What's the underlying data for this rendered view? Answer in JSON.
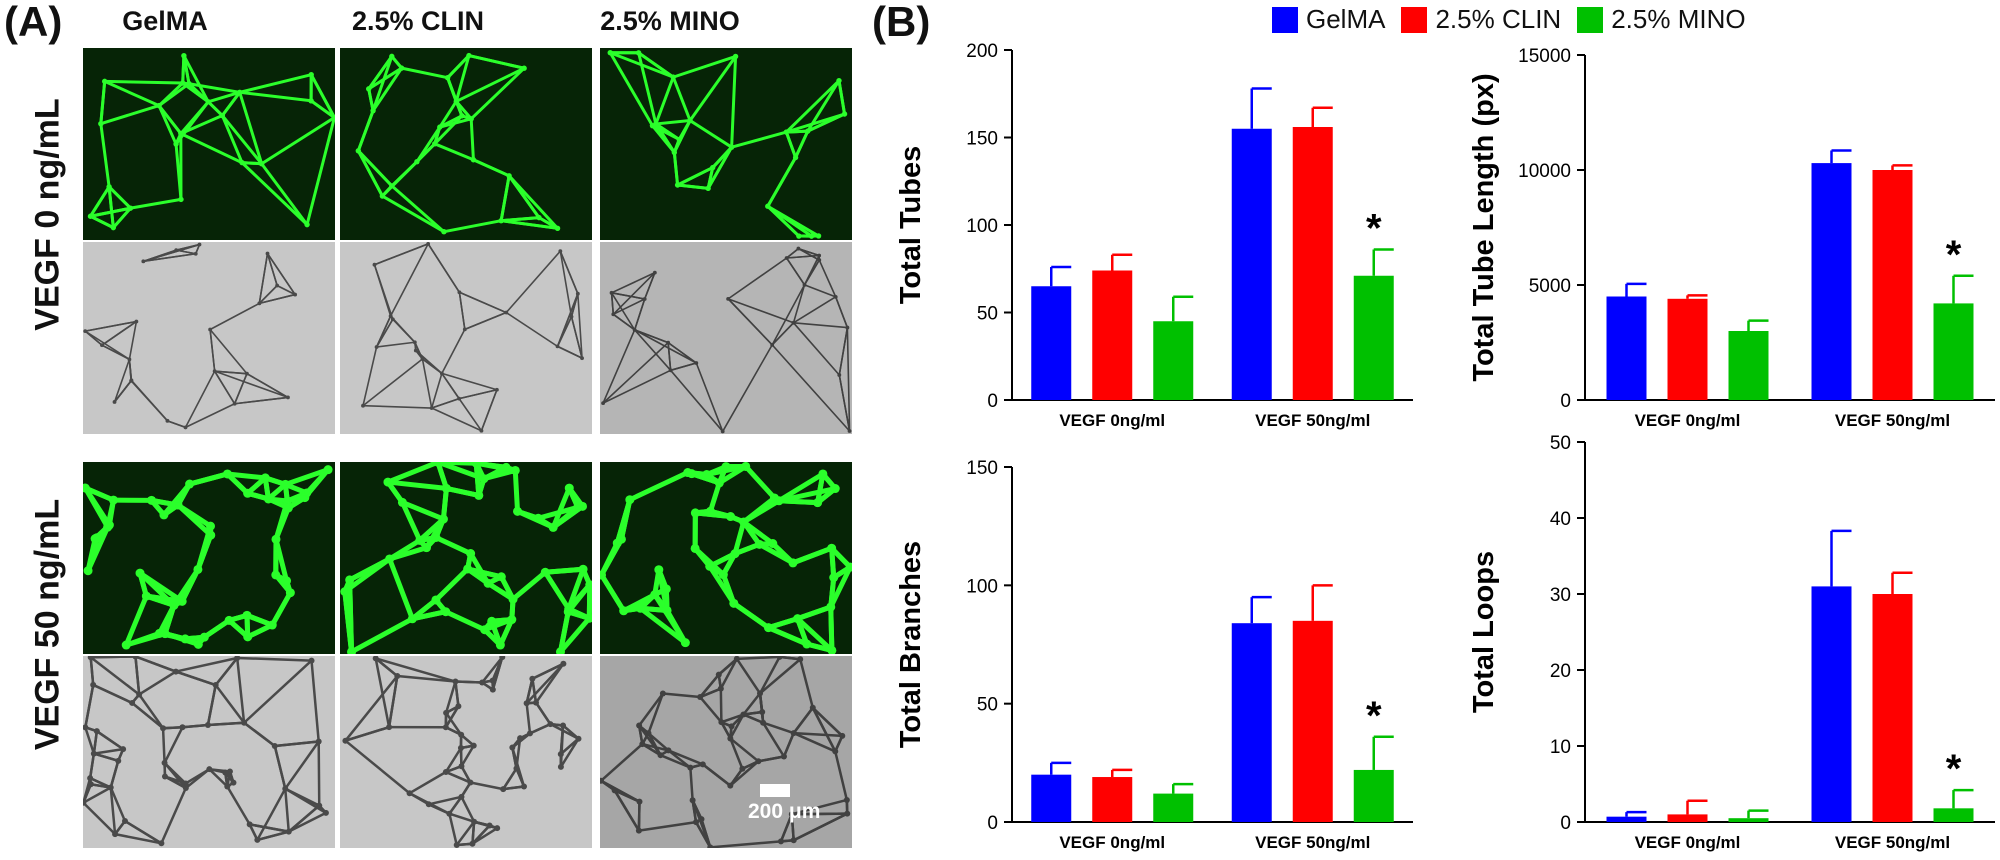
{
  "panel_a": {
    "label": "(A)",
    "columns": [
      "GelMA",
      "2.5% CLIN",
      "2.5% MINO"
    ],
    "rows": [
      "VEGF 0 ng/mL",
      "VEGF 50 ng/mL"
    ],
    "scale_bar": "200 μm"
  },
  "panel_b": {
    "label": "(B)"
  },
  "legend": [
    {
      "name": "GelMA",
      "color": "#0000ff"
    },
    {
      "name": "2.5% CLIN",
      "color": "#ff0000"
    },
    {
      "name": "2.5% MINO",
      "color": "#00c000"
    }
  ],
  "chart_data": [
    {
      "type": "bar",
      "ylabel": "Total Tubes",
      "categories": [
        "VEGF 0ng/ml",
        "VEGF 50ng/ml"
      ],
      "ylim": [
        0,
        200
      ],
      "yticks": [
        0,
        50,
        100,
        150,
        200
      ],
      "series": [
        {
          "name": "GelMA",
          "values": [
            65,
            155
          ],
          "errors": [
            11,
            23
          ]
        },
        {
          "name": "2.5% CLIN",
          "values": [
            74,
            156
          ],
          "errors": [
            9,
            11
          ]
        },
        {
          "name": "2.5% MINO",
          "values": [
            45,
            71
          ],
          "errors": [
            14,
            15
          ]
        }
      ],
      "annotations": [
        {
          "category": 1,
          "series": 2,
          "text": "*"
        }
      ]
    },
    {
      "type": "bar",
      "ylabel": "Total Tube Length (px)",
      "categories": [
        "VEGF 0ng/ml",
        "VEGF 50ng/ml"
      ],
      "ylim": [
        0,
        15000
      ],
      "yticks": [
        0,
        5000,
        10000,
        15000
      ],
      "series": [
        {
          "name": "GelMA",
          "values": [
            4500,
            10300
          ],
          "errors": [
            550,
            550
          ]
        },
        {
          "name": "2.5% CLIN",
          "values": [
            4400,
            10000
          ],
          "errors": [
            150,
            200
          ]
        },
        {
          "name": "2.5% MINO",
          "values": [
            3000,
            4200
          ],
          "errors": [
            450,
            1200
          ]
        }
      ],
      "annotations": [
        {
          "category": 1,
          "series": 2,
          "text": "*"
        }
      ]
    },
    {
      "type": "bar",
      "ylabel": "Total Branches",
      "categories": [
        "VEGF 0ng/ml",
        "VEGF 50ng/ml"
      ],
      "ylim": [
        0,
        150
      ],
      "yticks": [
        0,
        50,
        100,
        150
      ],
      "series": [
        {
          "name": "GelMA",
          "values": [
            20,
            84
          ],
          "errors": [
            5,
            11
          ]
        },
        {
          "name": "2.5% CLIN",
          "values": [
            19,
            85
          ],
          "errors": [
            3,
            15
          ]
        },
        {
          "name": "2.5% MINO",
          "values": [
            12,
            22
          ],
          "errors": [
            4,
            14
          ]
        }
      ],
      "annotations": [
        {
          "category": 1,
          "series": 2,
          "text": "*"
        }
      ]
    },
    {
      "type": "bar",
      "ylabel": "Total Loops",
      "categories": [
        "VEGF 0ng/ml",
        "VEGF 50ng/ml"
      ],
      "ylim": [
        0,
        50
      ],
      "yticks": [
        0,
        10,
        20,
        30,
        40,
        50
      ],
      "series": [
        {
          "name": "GelMA",
          "values": [
            0.7,
            31
          ],
          "errors": [
            0.6,
            7.3
          ]
        },
        {
          "name": "2.5% CLIN",
          "values": [
            1.0,
            30
          ],
          "errors": [
            1.8,
            2.8
          ]
        },
        {
          "name": "2.5% MINO",
          "values": [
            0.5,
            1.8
          ],
          "errors": [
            1.0,
            2.4
          ]
        }
      ],
      "annotations": [
        {
          "category": 1,
          "series": 2,
          "text": "*"
        }
      ]
    }
  ]
}
